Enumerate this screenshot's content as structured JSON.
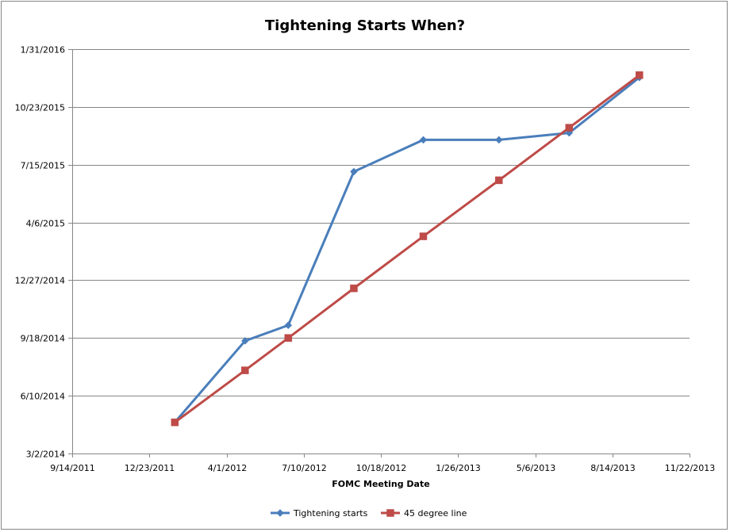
{
  "chart_data": {
    "type": "line",
    "title": "Tightening Starts When?",
    "xlabel": "FOMC Meeting Date",
    "ylabel": "",
    "x_ticks": [
      "9/14/2011",
      "12/23/2011",
      "4/1/2012",
      "7/10/2012",
      "10/18/2012",
      "1/26/2013",
      "5/6/2013",
      "8/14/2013",
      "11/22/2013"
    ],
    "y_ticks": [
      "3/2/2014",
      "6/10/2014",
      "9/18/2014",
      "12/27/2014",
      "4/6/2015",
      "7/15/2015",
      "10/23/2015",
      "1/31/2016"
    ],
    "xlim": [
      "9/14/2011",
      "11/22/2013"
    ],
    "ylim": [
      "3/2/2014",
      "1/31/2016"
    ],
    "grid": "horizontal",
    "legend": "bottom",
    "series": [
      {
        "name": "Tightening starts",
        "color": "#4A7EBB",
        "marker": "diamond",
        "points": [
          {
            "x": "1/25/2012",
            "y": "4/25/2014"
          },
          {
            "x": "4/25/2012",
            "y": "9/13/2014"
          },
          {
            "x": "6/20/2012",
            "y": "10/10/2014"
          },
          {
            "x": "9/13/2012",
            "y": "7/3/2015"
          },
          {
            "x": "12/12/2012",
            "y": "8/27/2015"
          },
          {
            "x": "3/20/2013",
            "y": "8/27/2015"
          },
          {
            "x": "6/19/2013",
            "y": "9/8/2015"
          },
          {
            "x": "9/18/2013",
            "y": "12/13/2015"
          }
        ]
      },
      {
        "name": "45 degree line",
        "color": "#BE4B48",
        "marker": "square",
        "points": [
          {
            "x": "1/25/2012",
            "y": "4/25/2014"
          },
          {
            "x": "4/25/2012",
            "y": "7/24/2014"
          },
          {
            "x": "6/20/2012",
            "y": "9/18/2014"
          },
          {
            "x": "9/13/2012",
            "y": "12/13/2014"
          },
          {
            "x": "12/12/2012",
            "y": "3/13/2015"
          },
          {
            "x": "3/20/2013",
            "y": "6/18/2015"
          },
          {
            "x": "6/19/2013",
            "y": "9/17/2015"
          },
          {
            "x": "9/18/2013",
            "y": "12/17/2015"
          }
        ]
      }
    ]
  }
}
